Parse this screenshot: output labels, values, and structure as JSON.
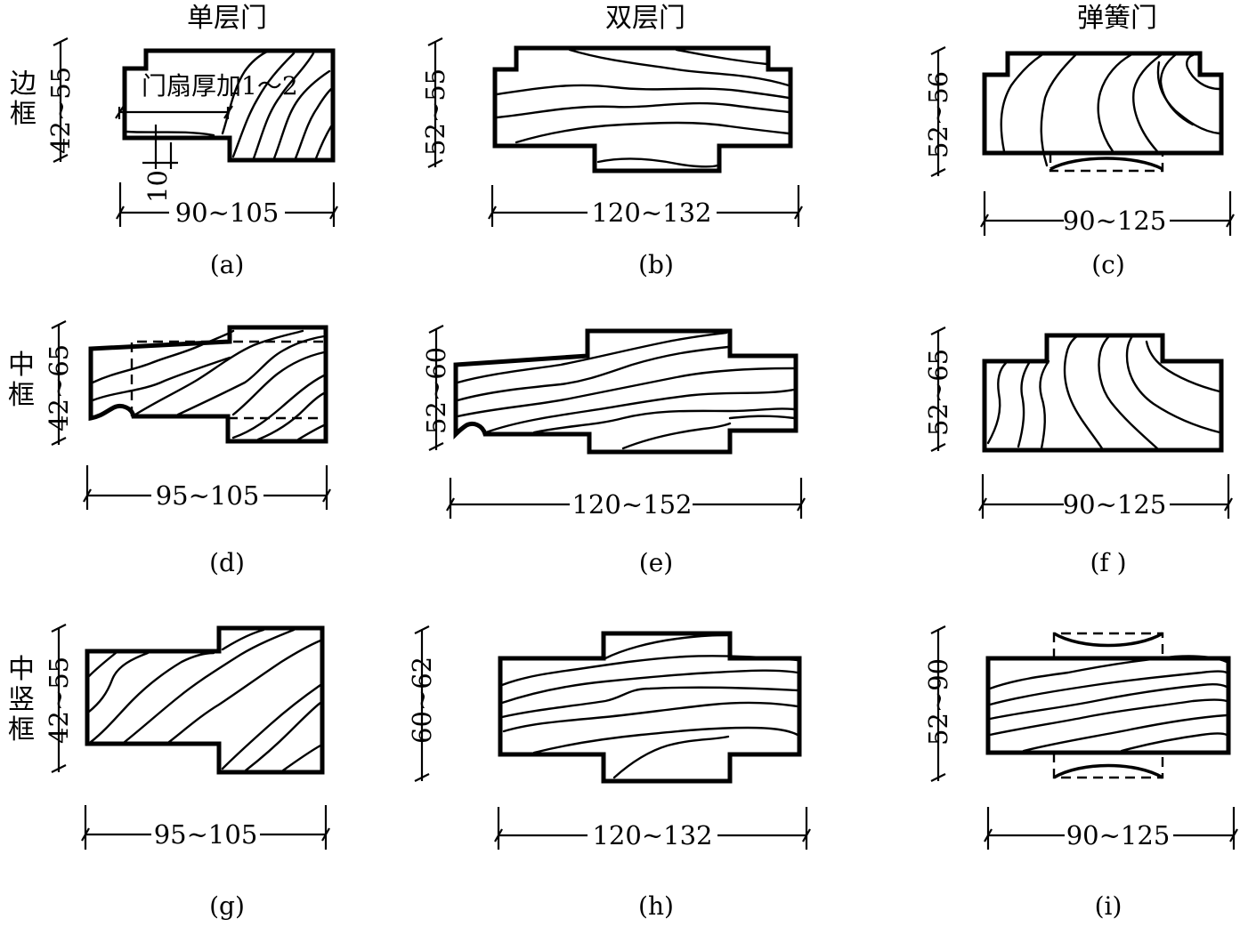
{
  "columns": {
    "single": "单层门",
    "double": "双层门",
    "spring": "弹簧门"
  },
  "rows": {
    "edge": "边\n框",
    "middle": "中\n框",
    "mullion": "中\n竖\n框"
  },
  "note": "门扇厚加1～2",
  "panels": {
    "a": {
      "caption": "(a)",
      "width": "90~105",
      "height": "42~55",
      "offset": "10"
    },
    "b": {
      "caption": "(b)",
      "width": "120~132",
      "height": "52~55"
    },
    "c": {
      "caption": "(c)",
      "width": "90~125",
      "height": "52~56"
    },
    "d": {
      "caption": "(d)",
      "width": "95~105",
      "height": "42~65"
    },
    "e": {
      "caption": "(e)",
      "width": "120~152",
      "height": "52~60"
    },
    "f": {
      "caption": "(f )",
      "width": "90~125",
      "height": "52~65"
    },
    "g": {
      "caption": "(g)",
      "width": "95~105",
      "height": "42~55"
    },
    "h": {
      "caption": "(h)",
      "width": "120~132",
      "height": "60~62"
    },
    "i": {
      "caption": "(i)",
      "width": "90~125",
      "height": "52~90"
    }
  }
}
